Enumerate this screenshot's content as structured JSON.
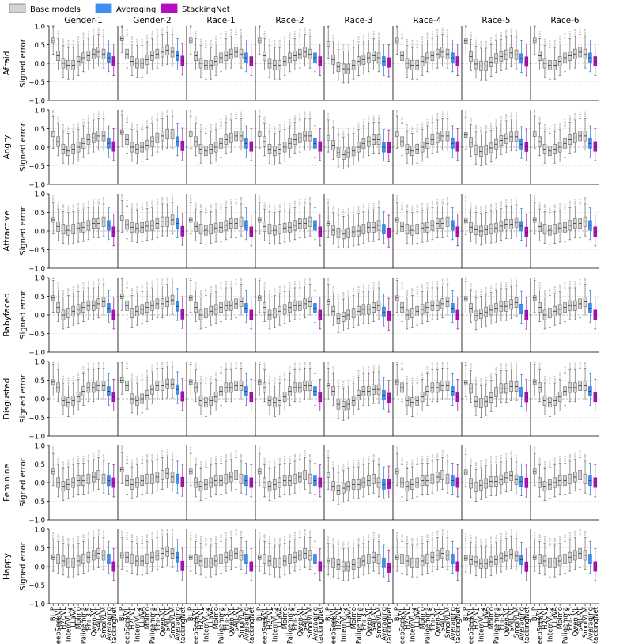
{
  "legend": {
    "items": [
      {
        "label": "Base models",
        "color": "#d3d3d3"
      },
      {
        "label": "Averaging",
        "color": "#3f8ef2"
      },
      {
        "label": "StackingNet",
        "color": "#b40fbf"
      }
    ]
  },
  "chart_data": {
    "type": "box",
    "layout": "grid",
    "columns": [
      "Gender-1",
      "Gender-2",
      "Race-1",
      "Race-2",
      "Race-3",
      "Race-4",
      "Race-5",
      "Race-6"
    ],
    "rows": [
      "Afraid",
      "Angry",
      "Attractive",
      "Babyfaced",
      "Disgusted",
      "Feminine",
      "Happy"
    ],
    "models": [
      "BLIP",
      "DeepSeekVL",
      "H2OVL",
      "InternVL-2",
      "LLaVA",
      "Molmo",
      "Paligemma",
      "Phi-3.5",
      "Qwen-VL",
      "SAIL-VL",
      "SmolVLM",
      "Averaging",
      "StackingNet"
    ],
    "ylabel": "Signed error",
    "ylim": [
      -1.0,
      1.0
    ],
    "yticks": [
      "-1.0",
      "-0.5",
      "0.0",
      "0.5",
      "1.0"
    ],
    "grid": "horizontal dashed",
    "row_medians": [
      [
        0.62,
        0.2,
        0.0,
        -0.05,
        -0.05,
        0.05,
        0.15,
        0.2,
        0.25,
        0.3,
        0.25,
        0.15,
        0.05
      ],
      [
        0.35,
        0.15,
        -0.05,
        -0.1,
        -0.05,
        0.0,
        0.1,
        0.2,
        0.25,
        0.3,
        0.3,
        0.1,
        0.02
      ],
      [
        0.3,
        0.12,
        0.05,
        0.02,
        0.05,
        0.08,
        0.1,
        0.15,
        0.2,
        0.2,
        0.25,
        0.15,
        -0.02
      ],
      [
        0.45,
        0.2,
        0.0,
        0.05,
        0.1,
        0.15,
        0.2,
        0.25,
        0.25,
        0.3,
        0.35,
        0.18,
        0.0
      ],
      [
        0.45,
        0.3,
        -0.05,
        -0.1,
        -0.05,
        0.05,
        0.2,
        0.3,
        0.3,
        0.35,
        0.35,
        0.2,
        0.05
      ],
      [
        0.3,
        0.0,
        -0.1,
        -0.05,
        0.0,
        0.05,
        0.05,
        0.1,
        0.15,
        0.2,
        0.1,
        0.05,
        0.0
      ],
      [
        0.25,
        0.2,
        0.15,
        0.1,
        0.1,
        0.15,
        0.2,
        0.25,
        0.3,
        0.35,
        0.3,
        0.2,
        0.0
      ]
    ],
    "column_offsets": [
      0.0,
      0.05,
      0.0,
      0.0,
      -0.1,
      0.0,
      -0.02,
      0.0
    ],
    "box_half_height": 0.13,
    "whisker_extent": 0.38
  }
}
